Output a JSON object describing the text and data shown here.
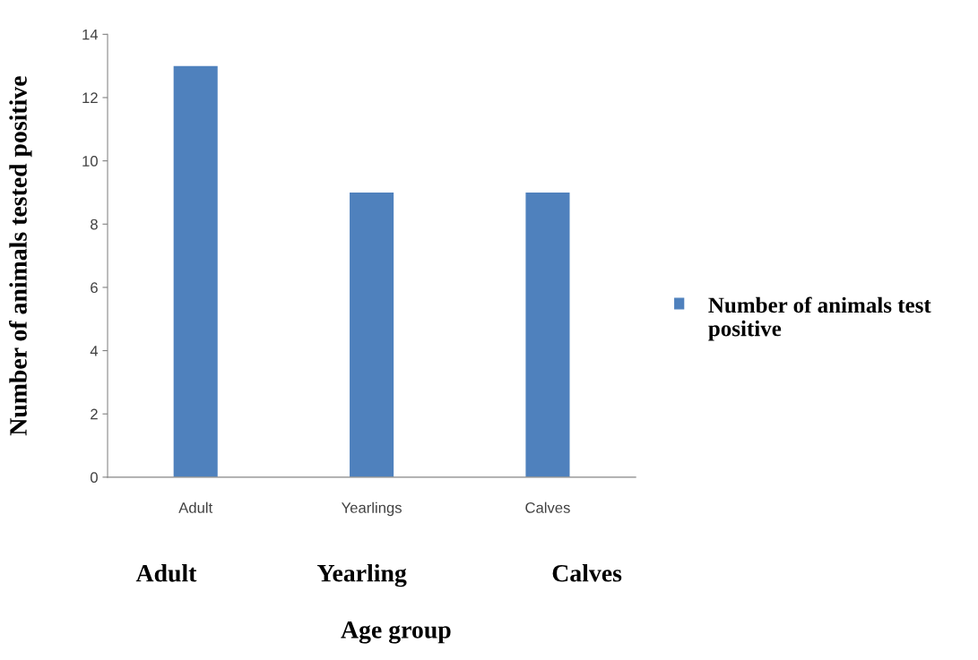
{
  "chart_data": {
    "type": "bar",
    "categories": [
      "Adult",
      "Yearlings",
      "Calves"
    ],
    "series": [
      {
        "name": "Number of animals test positive",
        "color": "#4f81bd",
        "values": [
          13,
          9,
          9
        ]
      }
    ],
    "ylabel": "Number of animals tested positive",
    "xlabel": "Age group",
    "annotations": [
      "Adult",
      "Yearling",
      "Calves"
    ],
    "ylim": [
      0,
      14
    ],
    "yticks": [
      0,
      2,
      4,
      6,
      8,
      10,
      12,
      14
    ],
    "grid": false,
    "legend": "right"
  }
}
